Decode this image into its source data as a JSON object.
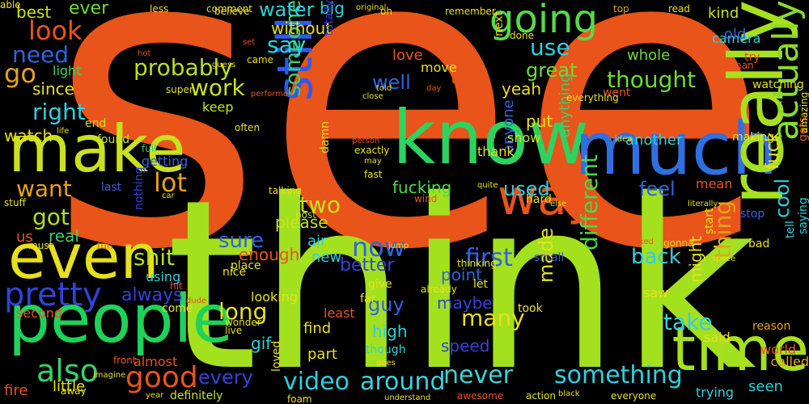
{
  "background": "#000000",
  "words": [
    {
      "text": "see",
      "color": "#e8541a"
    },
    {
      "text": "think",
      "color": "#a3e01e"
    },
    {
      "text": "know",
      "color": "#2cd35e"
    },
    {
      "text": "much",
      "color": "#2f6fe0"
    },
    {
      "text": "people",
      "color": "#1fd25a"
    },
    {
      "text": "make",
      "color": "#c9e11e"
    },
    {
      "text": "even",
      "color": "#e7e01c"
    },
    {
      "text": "really",
      "color": "#a7e01e"
    },
    {
      "text": "time",
      "color": "#a7e01e"
    },
    {
      "text": "still",
      "color": "#2f5be8"
    },
    {
      "text": "way",
      "color": "#e8541a"
    },
    {
      "text": "going",
      "color": "#56d84a"
    },
    {
      "text": "actually",
      "color": "#8adb2a"
    },
    {
      "text": "pretty",
      "color": "#3342d8"
    },
    {
      "text": "also",
      "color": "#3ad06a"
    },
    {
      "text": "good",
      "color": "#e8541a"
    },
    {
      "text": "never",
      "color": "#3bd3d0"
    },
    {
      "text": "video",
      "color": "#2fd0dd"
    },
    {
      "text": "around",
      "color": "#3cd0df"
    },
    {
      "text": "something",
      "color": "#2fd0dd"
    },
    {
      "text": "look",
      "color": "#e8541a"
    },
    {
      "text": "go",
      "color": "#e8a21a"
    },
    {
      "text": "need",
      "color": "#2f63e0"
    },
    {
      "text": "right",
      "color": "#2fd0dd"
    },
    {
      "text": "want",
      "color": "#e8a21a"
    },
    {
      "text": "got",
      "color": "#ade01e"
    },
    {
      "text": "probably",
      "color": "#b8e01e"
    },
    {
      "text": "work",
      "color": "#c9e11e"
    },
    {
      "text": "lot",
      "color": "#e8a21a"
    },
    {
      "text": "someone",
      "color": "#3ad06a"
    },
    {
      "text": "two",
      "color": "#c9e11e"
    },
    {
      "text": "sure",
      "color": "#2f63e0"
    },
    {
      "text": "shit",
      "color": "#ade01e"
    },
    {
      "text": "long",
      "color": "#e7e01c"
    },
    {
      "text": "every",
      "color": "#3342d8"
    },
    {
      "text": "now",
      "color": "#2f63e0"
    },
    {
      "text": "first",
      "color": "#2f63e0"
    },
    {
      "text": "many",
      "color": "#e7e01c"
    },
    {
      "text": "different",
      "color": "#4ad84a"
    },
    {
      "text": "thing",
      "color": "#e8a21a"
    },
    {
      "text": "take",
      "color": "#2fd0dd"
    },
    {
      "text": "back",
      "color": "#2fd0dd"
    },
    {
      "text": "thought",
      "color": "#6ddb33"
    },
    {
      "text": "use",
      "color": "#2fd0dd"
    },
    {
      "text": "well",
      "color": "#2f63e0"
    },
    {
      "text": "used",
      "color": "#2fd0dd"
    },
    {
      "text": "feel",
      "color": "#2f63e0"
    },
    {
      "text": "say",
      "color": "#2fd0dd"
    },
    {
      "text": "water",
      "color": "#2fd0dd"
    },
    {
      "text": "ever",
      "color": "#6ddb33"
    },
    {
      "text": "best",
      "color": "#c9e11e"
    },
    {
      "text": "since",
      "color": "#e7e01c"
    },
    {
      "text": "watch",
      "color": "#e7e01c"
    },
    {
      "text": "please",
      "color": "#c9e11e"
    },
    {
      "text": "guy",
      "color": "#2f63e0"
    },
    {
      "text": "better",
      "color": "#3342d8"
    },
    {
      "text": "always",
      "color": "#3342d8"
    },
    {
      "text": "cool",
      "color": "#2fd0dd"
    },
    {
      "text": "fuck",
      "color": "#e7e01c"
    },
    {
      "text": "great",
      "color": "#6ddb33"
    },
    {
      "text": "yeah",
      "color": "#e7e01c"
    },
    {
      "text": "love",
      "color": "#e8541a"
    },
    {
      "text": "big",
      "color": "#2fd0dd"
    },
    {
      "text": "without",
      "color": "#e7e01c"
    },
    {
      "text": "whole",
      "color": "#6ddb33"
    },
    {
      "text": "kind",
      "color": "#c9e11e"
    },
    {
      "text": "fucking",
      "color": "#4ad84a"
    },
    {
      "text": "point",
      "color": "#2f63e0"
    },
    {
      "text": "maybe",
      "color": "#3342d8"
    },
    {
      "text": "made",
      "color": "#e7e01c"
    },
    {
      "text": "enough",
      "color": "#e8541a"
    },
    {
      "text": "real",
      "color": "#3ad06a"
    },
    {
      "text": "us",
      "color": "#e8541a"
    },
    {
      "text": "fire",
      "color": "#e8541a"
    },
    {
      "text": "little",
      "color": "#e7e01c"
    },
    {
      "text": "might",
      "color": "#e7e01c"
    },
    {
      "text": "air",
      "color": "#2fd0dd"
    },
    {
      "text": "new",
      "color": "#2fd0dd"
    },
    {
      "text": "find",
      "color": "#e7e01c"
    },
    {
      "text": "high",
      "color": "#2fd0dd"
    },
    {
      "text": "speed",
      "color": "#3342d8"
    },
    {
      "text": "part",
      "color": "#e7e01c"
    },
    {
      "text": "gif",
      "color": "#2fd0dd"
    },
    {
      "text": "seen",
      "color": "#2fd0dd"
    },
    {
      "text": "another",
      "color": "#2fd0dd"
    },
    {
      "text": "mean",
      "color": "#e8541a"
    },
    {
      "text": "camera",
      "color": "#2fd0dd"
    },
    {
      "text": "old",
      "color": "#2f63e0"
    },
    {
      "text": "trying",
      "color": "#2fd0dd"
    },
    {
      "text": "called",
      "color": "#e8a21a"
    },
    {
      "text": "world",
      "color": "#e8541a"
    },
    {
      "text": "said",
      "color": "#e7e01c"
    },
    {
      "text": "saw",
      "color": "#e7e01c"
    },
    {
      "text": "put",
      "color": "#e7e01c"
    },
    {
      "text": "looking",
      "color": "#e7e01c"
    },
    {
      "text": "light",
      "color": "#3ad06a"
    },
    {
      "text": "second",
      "color": "#e8541a"
    },
    {
      "text": "keep",
      "color": "#c9e11e"
    },
    {
      "text": "end",
      "color": "#c9e11e"
    },
    {
      "text": "found",
      "color": "#c9e11e"
    },
    {
      "text": "getting",
      "color": "#2f63e0"
    },
    {
      "text": "last",
      "color": "#2f63e0"
    },
    {
      "text": "almost",
      "color": "#e8541a"
    },
    {
      "text": "definitely",
      "color": "#c9e11e"
    },
    {
      "text": "using",
      "color": "#2fd0dd"
    },
    {
      "text": "nice",
      "color": "#e7e01c"
    },
    {
      "text": "come",
      "color": "#e7e01c"
    },
    {
      "text": "least",
      "color": "#e8541a"
    },
    {
      "text": "though",
      "color": "#2fd0dd"
    },
    {
      "text": "anything",
      "color": "#3ad06a"
    },
    {
      "text": "anyone",
      "color": "#2f63e0"
    },
    {
      "text": "show",
      "color": "#c9e11e"
    },
    {
      "text": "thank",
      "color": "#e7e01c"
    },
    {
      "text": "stop",
      "color": "#2f63e0"
    },
    {
      "text": "bad",
      "color": "#e7e01c"
    },
    {
      "text": "tell",
      "color": "#2fd0dd"
    },
    {
      "text": "saying",
      "color": "#2fd0dd"
    },
    {
      "text": "reason",
      "color": "#e8a21a"
    },
    {
      "text": "making",
      "color": "#e7e01c"
    },
    {
      "text": "move",
      "color": "#e7e01c"
    },
    {
      "text": "bit",
      "color": "#e8541a"
    },
    {
      "text": "place",
      "color": "#e7e01c"
    },
    {
      "text": "hard",
      "color": "#e7e01c"
    },
    {
      "text": "give",
      "color": "#e7e01c"
    },
    {
      "text": "far",
      "color": "#e7e01c"
    },
    {
      "text": "took",
      "color": "#e7e01c"
    },
    {
      "text": "small",
      "color": "#2f63e0"
    },
    {
      "text": "let",
      "color": "#e7e01c"
    },
    {
      "text": "already",
      "color": "#e7e01c"
    },
    {
      "text": "thinking",
      "color": "#e7e01c"
    },
    {
      "text": "wonder",
      "color": "#e7e01c"
    },
    {
      "text": "live",
      "color": "#e7e01c"
    },
    {
      "text": "away",
      "color": "#e7e01c"
    },
    {
      "text": "front",
      "color": "#e8541a"
    },
    {
      "text": "hit",
      "color": "#e8541a"
    },
    {
      "text": "fun",
      "color": "#e8541a"
    },
    {
      "text": "must",
      "color": "#e7e01c"
    },
    {
      "text": "stuff",
      "color": "#e7e01c"
    },
    {
      "text": "nothing",
      "color": "#3342d8"
    },
    {
      "text": "full",
      "color": "#3ad06a"
    },
    {
      "text": "post",
      "color": "#c9e11e"
    },
    {
      "text": "went",
      "color": "#e8541a"
    },
    {
      "text": "watching",
      "color": "#e7e01c"
    },
    {
      "text": "try",
      "color": "#e8541a"
    },
    {
      "text": "man",
      "color": "#e8541a"
    },
    {
      "text": "done",
      "color": "#e7e01c"
    },
    {
      "text": "next",
      "color": "#e7e01c"
    },
    {
      "text": "top",
      "color": "#e8a21a"
    },
    {
      "text": "read",
      "color": "#e7e01c"
    },
    {
      "text": "remember",
      "color": "#e7e01c"
    },
    {
      "text": "oh",
      "color": "#e7e01c"
    },
    {
      "text": "believe",
      "color": "#e7e01c"
    },
    {
      "text": "less",
      "color": "#e7e01c"
    },
    {
      "text": "comment",
      "color": "#e7e01c"
    },
    {
      "text": "original",
      "color": "#e7e01c"
    },
    {
      "text": "totally",
      "color": "#3342d8"
    },
    {
      "text": "set",
      "color": "#e8541a"
    },
    {
      "text": "hot",
      "color": "#e8541a"
    },
    {
      "text": "came",
      "color": "#e7e01c"
    },
    {
      "text": "guess",
      "color": "#e7e01c"
    },
    {
      "text": "performed",
      "color": "#e8541a"
    },
    {
      "text": "super",
      "color": "#e7e01c"
    },
    {
      "text": "day",
      "color": "#e8541a"
    },
    {
      "text": "told",
      "color": "#e7e01c"
    },
    {
      "text": "close",
      "color": "#e7e01c"
    },
    {
      "text": "everything",
      "color": "#e7e01c"
    },
    {
      "text": "life",
      "color": "#e7e01c"
    },
    {
      "text": "often",
      "color": "#e7e01c"
    },
    {
      "text": "person",
      "color": "#e8541a"
    },
    {
      "text": "exactly",
      "color": "#e7e01c"
    },
    {
      "text": "may",
      "color": "#e7e01c"
    },
    {
      "text": "fast",
      "color": "#e7e01c"
    },
    {
      "text": "wind",
      "color": "#e8541a"
    },
    {
      "text": "idea",
      "color": "#e7e01c"
    },
    {
      "text": "quite",
      "color": "#e7e01c"
    },
    {
      "text": "else",
      "color": "#e7e01c"
    },
    {
      "text": "literally",
      "color": "#e7e01c"
    },
    {
      "text": "talking",
      "color": "#e7e01c"
    },
    {
      "text": "damn",
      "color": "#e7e01c"
    },
    {
      "text": "picture",
      "color": "#e8541a"
    },
    {
      "text": "car",
      "color": "#e7e01c"
    },
    {
      "text": "looked",
      "color": "#e8541a"
    },
    {
      "text": "gonna",
      "color": "#e7e01c"
    },
    {
      "text": "start",
      "color": "#e7e01c"
    },
    {
      "text": "space",
      "color": "#e7e01c"
    },
    {
      "text": "gets",
      "color": "#e8541a"
    },
    {
      "text": "amazing",
      "color": "#e7e01c"
    },
    {
      "text": "jump",
      "color": "#e7e01c"
    },
    {
      "text": "dude",
      "color": "#e8541a"
    },
    {
      "text": "goes",
      "color": "#e7e01c"
    },
    {
      "text": "imagine",
      "color": "#e7e01c"
    },
    {
      "text": "year",
      "color": "#e7e01c"
    },
    {
      "text": "loved",
      "color": "#e7e01c"
    },
    {
      "text": "foam",
      "color": "#e7e01c"
    },
    {
      "text": "understand",
      "color": "#e7e01c"
    },
    {
      "text": "awesome",
      "color": "#e8541a"
    },
    {
      "text": "action",
      "color": "#e7e01c"
    },
    {
      "text": "black",
      "color": "#e7e01c"
    },
    {
      "text": "everyone",
      "color": "#e7e01c"
    },
    {
      "text": "able",
      "color": "#e7e01c"
    }
  ]
}
